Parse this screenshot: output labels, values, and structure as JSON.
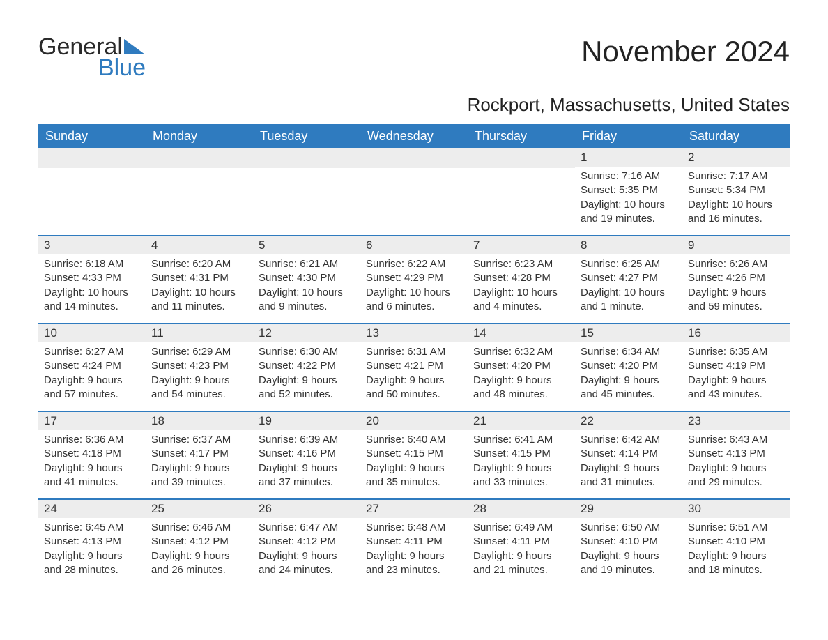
{
  "brand": {
    "general": "General",
    "blue": "Blue"
  },
  "colors": {
    "accent": "#2f7bbf",
    "header_bg": "#2f7bbf",
    "header_text": "#ffffff",
    "daynum_bg": "#ededed",
    "text": "#333333",
    "page_bg": "#ffffff"
  },
  "title": "November 2024",
  "location": "Rockport, Massachusetts, United States",
  "day_names": [
    "Sunday",
    "Monday",
    "Tuesday",
    "Wednesday",
    "Thursday",
    "Friday",
    "Saturday"
  ],
  "weeks": [
    [
      null,
      null,
      null,
      null,
      null,
      {
        "n": "1",
        "sunrise": "Sunrise: 7:16 AM",
        "sunset": "Sunset: 5:35 PM",
        "d1": "Daylight: 10 hours",
        "d2": "and 19 minutes."
      },
      {
        "n": "2",
        "sunrise": "Sunrise: 7:17 AM",
        "sunset": "Sunset: 5:34 PM",
        "d1": "Daylight: 10 hours",
        "d2": "and 16 minutes."
      }
    ],
    [
      {
        "n": "3",
        "sunrise": "Sunrise: 6:18 AM",
        "sunset": "Sunset: 4:33 PM",
        "d1": "Daylight: 10 hours",
        "d2": "and 14 minutes."
      },
      {
        "n": "4",
        "sunrise": "Sunrise: 6:20 AM",
        "sunset": "Sunset: 4:31 PM",
        "d1": "Daylight: 10 hours",
        "d2": "and 11 minutes."
      },
      {
        "n": "5",
        "sunrise": "Sunrise: 6:21 AM",
        "sunset": "Sunset: 4:30 PM",
        "d1": "Daylight: 10 hours",
        "d2": "and 9 minutes."
      },
      {
        "n": "6",
        "sunrise": "Sunrise: 6:22 AM",
        "sunset": "Sunset: 4:29 PM",
        "d1": "Daylight: 10 hours",
        "d2": "and 6 minutes."
      },
      {
        "n": "7",
        "sunrise": "Sunrise: 6:23 AM",
        "sunset": "Sunset: 4:28 PM",
        "d1": "Daylight: 10 hours",
        "d2": "and 4 minutes."
      },
      {
        "n": "8",
        "sunrise": "Sunrise: 6:25 AM",
        "sunset": "Sunset: 4:27 PM",
        "d1": "Daylight: 10 hours",
        "d2": "and 1 minute."
      },
      {
        "n": "9",
        "sunrise": "Sunrise: 6:26 AM",
        "sunset": "Sunset: 4:26 PM",
        "d1": "Daylight: 9 hours",
        "d2": "and 59 minutes."
      }
    ],
    [
      {
        "n": "10",
        "sunrise": "Sunrise: 6:27 AM",
        "sunset": "Sunset: 4:24 PM",
        "d1": "Daylight: 9 hours",
        "d2": "and 57 minutes."
      },
      {
        "n": "11",
        "sunrise": "Sunrise: 6:29 AM",
        "sunset": "Sunset: 4:23 PM",
        "d1": "Daylight: 9 hours",
        "d2": "and 54 minutes."
      },
      {
        "n": "12",
        "sunrise": "Sunrise: 6:30 AM",
        "sunset": "Sunset: 4:22 PM",
        "d1": "Daylight: 9 hours",
        "d2": "and 52 minutes."
      },
      {
        "n": "13",
        "sunrise": "Sunrise: 6:31 AM",
        "sunset": "Sunset: 4:21 PM",
        "d1": "Daylight: 9 hours",
        "d2": "and 50 minutes."
      },
      {
        "n": "14",
        "sunrise": "Sunrise: 6:32 AM",
        "sunset": "Sunset: 4:20 PM",
        "d1": "Daylight: 9 hours",
        "d2": "and 48 minutes."
      },
      {
        "n": "15",
        "sunrise": "Sunrise: 6:34 AM",
        "sunset": "Sunset: 4:20 PM",
        "d1": "Daylight: 9 hours",
        "d2": "and 45 minutes."
      },
      {
        "n": "16",
        "sunrise": "Sunrise: 6:35 AM",
        "sunset": "Sunset: 4:19 PM",
        "d1": "Daylight: 9 hours",
        "d2": "and 43 minutes."
      }
    ],
    [
      {
        "n": "17",
        "sunrise": "Sunrise: 6:36 AM",
        "sunset": "Sunset: 4:18 PM",
        "d1": "Daylight: 9 hours",
        "d2": "and 41 minutes."
      },
      {
        "n": "18",
        "sunrise": "Sunrise: 6:37 AM",
        "sunset": "Sunset: 4:17 PM",
        "d1": "Daylight: 9 hours",
        "d2": "and 39 minutes."
      },
      {
        "n": "19",
        "sunrise": "Sunrise: 6:39 AM",
        "sunset": "Sunset: 4:16 PM",
        "d1": "Daylight: 9 hours",
        "d2": "and 37 minutes."
      },
      {
        "n": "20",
        "sunrise": "Sunrise: 6:40 AM",
        "sunset": "Sunset: 4:15 PM",
        "d1": "Daylight: 9 hours",
        "d2": "and 35 minutes."
      },
      {
        "n": "21",
        "sunrise": "Sunrise: 6:41 AM",
        "sunset": "Sunset: 4:15 PM",
        "d1": "Daylight: 9 hours",
        "d2": "and 33 minutes."
      },
      {
        "n": "22",
        "sunrise": "Sunrise: 6:42 AM",
        "sunset": "Sunset: 4:14 PM",
        "d1": "Daylight: 9 hours",
        "d2": "and 31 minutes."
      },
      {
        "n": "23",
        "sunrise": "Sunrise: 6:43 AM",
        "sunset": "Sunset: 4:13 PM",
        "d1": "Daylight: 9 hours",
        "d2": "and 29 minutes."
      }
    ],
    [
      {
        "n": "24",
        "sunrise": "Sunrise: 6:45 AM",
        "sunset": "Sunset: 4:13 PM",
        "d1": "Daylight: 9 hours",
        "d2": "and 28 minutes."
      },
      {
        "n": "25",
        "sunrise": "Sunrise: 6:46 AM",
        "sunset": "Sunset: 4:12 PM",
        "d1": "Daylight: 9 hours",
        "d2": "and 26 minutes."
      },
      {
        "n": "26",
        "sunrise": "Sunrise: 6:47 AM",
        "sunset": "Sunset: 4:12 PM",
        "d1": "Daylight: 9 hours",
        "d2": "and 24 minutes."
      },
      {
        "n": "27",
        "sunrise": "Sunrise: 6:48 AM",
        "sunset": "Sunset: 4:11 PM",
        "d1": "Daylight: 9 hours",
        "d2": "and 23 minutes."
      },
      {
        "n": "28",
        "sunrise": "Sunrise: 6:49 AM",
        "sunset": "Sunset: 4:11 PM",
        "d1": "Daylight: 9 hours",
        "d2": "and 21 minutes."
      },
      {
        "n": "29",
        "sunrise": "Sunrise: 6:50 AM",
        "sunset": "Sunset: 4:10 PM",
        "d1": "Daylight: 9 hours",
        "d2": "and 19 minutes."
      },
      {
        "n": "30",
        "sunrise": "Sunrise: 6:51 AM",
        "sunset": "Sunset: 4:10 PM",
        "d1": "Daylight: 9 hours",
        "d2": "and 18 minutes."
      }
    ]
  ]
}
